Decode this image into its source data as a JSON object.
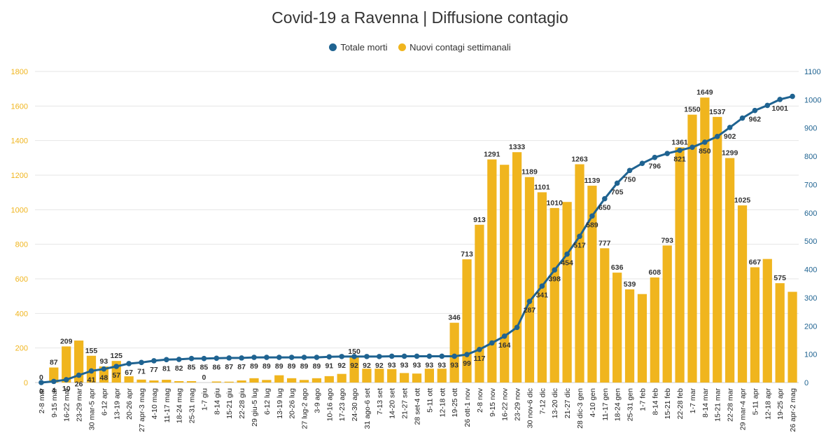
{
  "title": "Covid-19 a Ravenna | Diffusione contagio",
  "legend": [
    {
      "name": "Totale morti",
      "color": "#1f6391"
    },
    {
      "name": "Nuovi contagi settimanali",
      "color": "#f0b51e"
    }
  ],
  "chart_data": {
    "type": "bar",
    "title": "Covid-19 a Ravenna | Diffusione contagio",
    "legend_position": "top-center",
    "grid": true,
    "categories": [
      "2-8 mar",
      "9-15 mar",
      "16-22 mar",
      "23-29 mar",
      "30 mar-5 apr",
      "6-12 apr",
      "13-19 apr",
      "20-26 apr",
      "27 apr-3 mag",
      "4-10 mag",
      "11-17 mag",
      "18-24 mag",
      "25-31 mag",
      "1-7 giu",
      "8-14 giu",
      "15-21 giu",
      "22-28 giu",
      "29 giu-5 lug",
      "6-12 lug",
      "13-19 lug",
      "20-26 lug",
      "27 lug-2 ago",
      "3-9 ago",
      "10-16 ago",
      "17-23 ago",
      "24-30 ago",
      "31 ago-6 set",
      "7-13 set",
      "14-20 set",
      "21-27 set",
      "28 set-4 ott",
      "5-11 ott",
      "12-18 ott",
      "19-25 ott",
      "26 ott-1 nov",
      "2-8 nov",
      "9-15 nov",
      "16-22 nov",
      "23-29 nov",
      "30 nov-6 dic",
      "7-12 dic",
      "13-20 dic",
      "21-27 dic",
      "28 dic-3 gen",
      "4-10 gen",
      "11-17 gen",
      "18-24 gen",
      "25-31 gen",
      "1-7 feb",
      "8-14 feb",
      "15-21 feb",
      "22-28 feb",
      "1-7 mar",
      "8-14 mar",
      "15-21 mar",
      "22-28 mar",
      "29 mar-4 apr",
      "5-11 apr",
      "12-18 apr",
      "19-25 apr",
      "26 apr-2 mag"
    ],
    "series": [
      {
        "name": "Nuovi contagi settimanali",
        "axis": "left",
        "color": "#f0b51e",
        "values": [
          0,
          87,
          209,
          243,
          155,
          93,
          125,
          36,
          17,
          12,
          16,
          8,
          8,
          0,
          6,
          5,
          12,
          25,
          15,
          42,
          25,
          15,
          25,
          37,
          50,
          150,
          80,
          80,
          78,
          55,
          52,
          80,
          80,
          346,
          713,
          913,
          1291,
          1260,
          1333,
          1189,
          1101,
          1010,
          1045,
          1263,
          1139,
          777,
          636,
          539,
          512,
          608,
          793,
          1361,
          1550,
          1649,
          1537,
          1299,
          1025,
          667,
          715,
          575,
          525
        ],
        "labels": [
          "0",
          "87",
          "209",
          "",
          "155",
          "93",
          "125",
          "",
          "",
          "",
          "",
          "",
          "",
          "0",
          "",
          "",
          "",
          "",
          "",
          "",
          "",
          "",
          "",
          "",
          "",
          "150",
          "",
          "",
          "",
          "",
          "",
          "",
          "",
          "346",
          "713",
          "913",
          "1291",
          "",
          "1333",
          "1189",
          "1101",
          "1010",
          "",
          "1263",
          "1139",
          "777",
          "636",
          "539",
          "",
          "608",
          "793",
          "1361",
          "1550",
          "1649",
          "1537",
          "1299",
          "1025",
          "667",
          "",
          "575",
          ""
        ]
      },
      {
        "name": "Totale morti",
        "axis": "right",
        "color": "#1f6391",
        "values": [
          0,
          4,
          10,
          26,
          41,
          48,
          57,
          67,
          71,
          77,
          81,
          82,
          85,
          85,
          86,
          87,
          87,
          89,
          89,
          89,
          89,
          89,
          89,
          91,
          92,
          92,
          92,
          92,
          93,
          93,
          93,
          93,
          93,
          93,
          99,
          117,
          140,
          164,
          195,
          287,
          341,
          398,
          454,
          517,
          589,
          650,
          705,
          750,
          775,
          796,
          810,
          821,
          832,
          850,
          870,
          902,
          935,
          962,
          980,
          1001,
          1012
        ],
        "labels": [
          "0",
          "4",
          "10",
          "26",
          "41",
          "48",
          "57",
          "67",
          "71",
          "77",
          "81",
          "82",
          "85",
          "85",
          "86",
          "87",
          "87",
          "89",
          "89",
          "89",
          "89",
          "89",
          "89",
          "91",
          "92",
          "92",
          "92",
          "92",
          "93",
          "93",
          "93",
          "93",
          "93",
          "93",
          "99",
          "117",
          "",
          "164",
          "",
          "287",
          "341",
          "398",
          "454",
          "517",
          "589",
          "650",
          "705",
          "750",
          "",
          "796",
          "",
          "821",
          "",
          "850",
          "",
          "902",
          "",
          "962",
          "",
          "1001",
          ""
        ]
      }
    ],
    "y_left": {
      "min": 0,
      "max": 1800,
      "ticks": [
        "0",
        "200",
        "400",
        "600",
        "800",
        "1000",
        "1200",
        "1400",
        "1600",
        "1800"
      ],
      "color": "#f0b51e"
    },
    "y_right": {
      "min": 0,
      "max": 1100,
      "ticks": [
        "0",
        "100",
        "200",
        "300",
        "400",
        "500",
        "600",
        "700",
        "800",
        "900",
        "1000",
        "1100"
      ],
      "color": "#1f6391"
    }
  }
}
